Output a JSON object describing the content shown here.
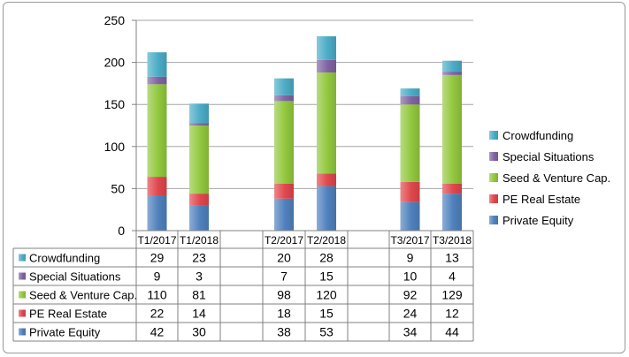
{
  "chart_data": {
    "type": "bar",
    "stacked": true,
    "title": "",
    "xlabel": "",
    "ylabel": "",
    "ylim": [
      0,
      250
    ],
    "yticks": [
      0,
      50,
      100,
      150,
      200,
      250
    ],
    "grid": true,
    "legend_position": "right",
    "categories": [
      "T1/2017",
      "T1/2018",
      "T2/2017",
      "T2/2018",
      "T3/2017",
      "T3/2018"
    ],
    "series": [
      {
        "name": "Private Equity",
        "color": "#4F81BD",
        "values": [
          42,
          30,
          38,
          53,
          34,
          44
        ]
      },
      {
        "name": "PE Real Estate",
        "color": "#E0474C",
        "values": [
          22,
          14,
          18,
          15,
          24,
          12
        ]
      },
      {
        "name": "Seed & Venture Cap.",
        "color": "#92C83E",
        "values": [
          110,
          81,
          98,
          120,
          92,
          129
        ]
      },
      {
        "name": "Special Situations",
        "color": "#8064A2",
        "values": [
          9,
          3,
          7,
          15,
          10,
          4
        ]
      },
      {
        "name": "Crowdfunding",
        "color": "#4BACC6",
        "values": [
          29,
          23,
          20,
          28,
          9,
          13
        ]
      }
    ],
    "data_table": {
      "row_labels": [
        "Crowdfunding",
        "Special Situations",
        "Seed & Venture Cap.",
        "PE Real Estate",
        "Private Equity"
      ]
    }
  }
}
